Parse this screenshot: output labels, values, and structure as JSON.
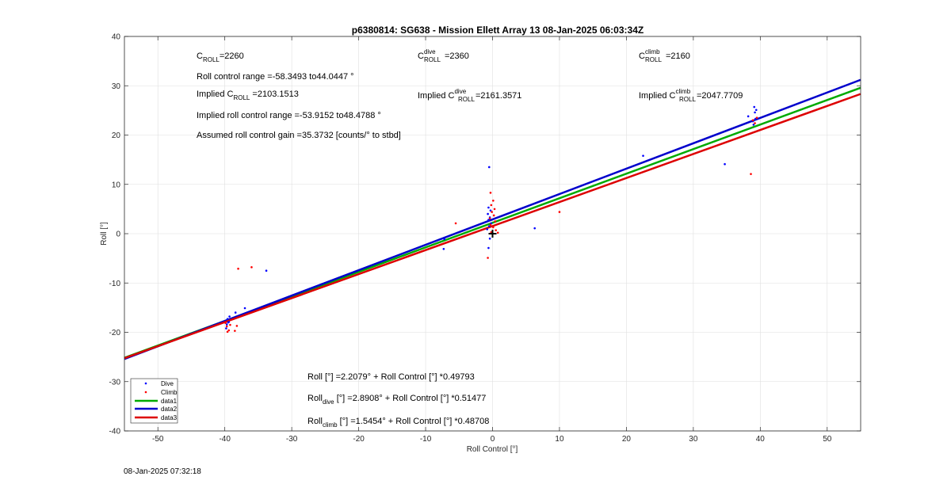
{
  "chart_data": {
    "type": "scatter",
    "title": "p6380814: SG638 - Mission Ellett Array 13 08-Jan-2025 06:03:34Z",
    "xlabel": "Roll Control [°]",
    "ylabel": "Roll [°]",
    "xlim": [
      -55,
      55
    ],
    "ylim": [
      -40,
      40
    ],
    "xticks": [
      -50,
      -40,
      -30,
      -20,
      -10,
      0,
      10,
      20,
      30,
      40,
      50
    ],
    "yticks": [
      -40,
      -30,
      -20,
      -10,
      0,
      10,
      20,
      30,
      40
    ],
    "grid": true,
    "legend_placement": "bottom-left",
    "legend": [
      "Dive",
      "Climb",
      "data1",
      "data2",
      "data3"
    ],
    "colors": {
      "dive": "#0000ff",
      "climb": "#ff0000",
      "data1": "#00aa00",
      "data2": "#0000cc",
      "data3": "#dd0000",
      "marker": "#000000"
    },
    "fit_lines": [
      {
        "name": "data1",
        "intercept": 2.2079,
        "slope": 0.49793,
        "x_range": [
          -55,
          55
        ]
      },
      {
        "name": "data2",
        "intercept": 2.8908,
        "slope": 0.51477,
        "x_range": [
          -55,
          55
        ]
      },
      {
        "name": "data3",
        "intercept": 1.5454,
        "slope": 0.48708,
        "x_range": [
          -55,
          55
        ]
      }
    ],
    "center_marker": {
      "x": 0,
      "y": 0
    },
    "series": [
      {
        "name": "Dive",
        "points": [
          [
            -39.6,
            -17.3
          ],
          [
            -39.4,
            -17.9
          ],
          [
            -39.7,
            -18.4
          ],
          [
            -39.3,
            -16.8
          ],
          [
            -39.8,
            -19.2
          ],
          [
            -39.5,
            -18.0
          ],
          [
            -38.4,
            -16.0
          ],
          [
            -37.0,
            -15.1
          ],
          [
            -33.8,
            -7.5
          ],
          [
            -7.3,
            -3.1
          ],
          [
            -7.2,
            -1.1
          ],
          [
            -0.5,
            13.5
          ],
          [
            -0.6,
            5.3
          ],
          [
            -0.3,
            4.7
          ],
          [
            -0.7,
            4.0
          ],
          [
            -0.4,
            3.3
          ],
          [
            -0.6,
            2.8
          ],
          [
            -0.2,
            2.1
          ],
          [
            -0.5,
            1.5
          ],
          [
            -0.8,
            0.9
          ],
          [
            -0.4,
            -1.0
          ],
          [
            -0.6,
            -2.9
          ],
          [
            6.3,
            1.1
          ],
          [
            22.5,
            15.8
          ],
          [
            34.7,
            14.1
          ],
          [
            38.2,
            23.8
          ],
          [
            39.1,
            25.7
          ],
          [
            39.2,
            24.6
          ],
          [
            38.9,
            22.8
          ],
          [
            39.3,
            23.3
          ],
          [
            39.0,
            22.1
          ],
          [
            39.4,
            25.1
          ]
        ]
      },
      {
        "name": "Climb",
        "points": [
          [
            -39.7,
            -18.8
          ],
          [
            -39.4,
            -19.6
          ],
          [
            -39.9,
            -18.1
          ],
          [
            -39.2,
            -18.5
          ],
          [
            -39.6,
            -19.9
          ],
          [
            -38.5,
            -19.7
          ],
          [
            -38.2,
            -18.7
          ],
          [
            -38.0,
            -7.1
          ],
          [
            -36.0,
            -6.8
          ],
          [
            -5.5,
            2.1
          ],
          [
            -0.3,
            8.3
          ],
          [
            0.1,
            6.7
          ],
          [
            -0.2,
            5.8
          ],
          [
            0.3,
            5.0
          ],
          [
            -0.1,
            4.4
          ],
          [
            0.2,
            3.7
          ],
          [
            -0.4,
            3.1
          ],
          [
            0.4,
            2.5
          ],
          [
            -0.3,
            1.8
          ],
          [
            0.1,
            1.3
          ],
          [
            0.5,
            0.7
          ],
          [
            -0.2,
            0.3
          ],
          [
            0.8,
            0.2
          ],
          [
            -0.7,
            -4.9
          ],
          [
            10.0,
            4.4
          ],
          [
            38.6,
            12.1
          ],
          [
            38.9,
            23.0
          ],
          [
            39.2,
            22.4
          ],
          [
            39.5,
            23.5
          ]
        ]
      }
    ],
    "annotations": {
      "c_roll": "C",
      "c_roll_sub": "ROLL",
      "c_roll_val": "=2260",
      "roll_range": "Roll control range =-58.3493 to44.0447 °",
      "implied_c_roll_pre": "Implied C",
      "implied_c_roll_sub": "ROLL",
      "implied_c_roll_val": " =2103.1513",
      "implied_range": "Implied roll control range =-53.9152 to48.4788 °",
      "assumed_gain": "Assumed roll control gain =35.3732 [counts/° to stbd]",
      "c_dive_pre": "C",
      "c_dive_sup": "dive",
      "c_dive_sub": "ROLL",
      "c_dive_val": "=2360",
      "implied_dive_pre": "Implied C",
      "implied_dive_sup": "dive",
      "implied_dive_sub": "ROLL",
      "implied_dive_val": "=2161.3571",
      "c_climb_pre": "C",
      "c_climb_sup": "climb",
      "c_climb_sub": "ROLL",
      "c_climb_val": "=2160",
      "implied_climb_pre": "Implied C",
      "implied_climb_sup": "climb",
      "implied_climb_sub": "ROLL",
      "implied_climb_val": "=2047.7709",
      "eq_all": "Roll [°] =2.2079° + Roll Control [°] *0.49793",
      "eq_dive_pre": "Roll",
      "eq_dive_sub": "dive",
      "eq_dive_post": " [°] =2.8908° + Roll Control [°] *0.51477",
      "eq_climb_pre": "Roll",
      "eq_climb_sub": "climb",
      "eq_climb_post": " [°] =1.5454° + Roll Control [°] *0.48708"
    }
  },
  "footer": {
    "timestamp": "08-Jan-2025 07:32:18"
  }
}
